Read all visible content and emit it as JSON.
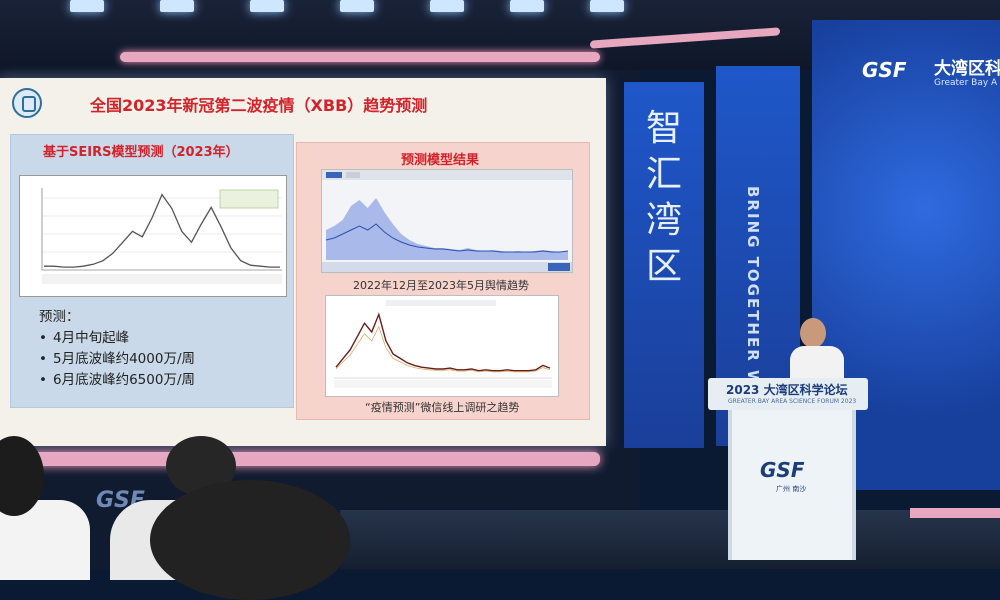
{
  "slide": {
    "title": "全国2023年新冠第二波疫情（XBB）趋势预测",
    "left_panel": {
      "title": "基于SEIRS模型预测（2023年）",
      "forecast_heading": "预测：",
      "forecast_points": [
        "4月中旬起峰",
        "5月底波峰约4000万/周",
        "6月底波峰约6500万/周"
      ]
    },
    "right_panel": {
      "title": "预测模型结果",
      "top_chart_caption": "2022年12月至2023年5月舆情趋势",
      "bottom_chart_caption": "“疫情预测”微信线上调研之趋势"
    }
  },
  "banners": {
    "left_vertical": "智汇湾区",
    "right_vertical": "BRING TOGETHER W"
  },
  "big_screen": {
    "logo": "GSF",
    "cn_title": "大湾区科",
    "en_title": "Greater Bay A"
  },
  "podium": {
    "cn_title": "2023 大湾区科学论坛",
    "en_title": "GREATER BAY AREA SCIENCE FORUM 2023",
    "logo": "GSF",
    "logo_sub": "广州 南沙"
  },
  "wall_logo": "GSF",
  "colors": {
    "slide_title": "#d3222a",
    "left_panel_bg": "#c9d9ea",
    "right_panel_bg": "#f6d3cc",
    "banner_blue": "#1f57c9",
    "pink_strip": "#e7a7bf"
  },
  "chart_data": {
    "type": "line",
    "left_seirs_curve": [
      2,
      2,
      1,
      1,
      2,
      4,
      8,
      16,
      28,
      40,
      34,
      55,
      80,
      65,
      40,
      28,
      48,
      66,
      45,
      22,
      8,
      3,
      2,
      1,
      1
    ],
    "right_top_series": {
      "area": [
        30,
        34,
        40,
        54,
        60,
        52,
        62,
        48,
        36,
        26,
        20,
        16,
        14,
        12,
        12,
        11,
        10,
        12,
        10,
        9,
        10,
        9,
        8,
        9,
        8,
        9,
        10,
        9,
        8,
        9
      ],
      "line": [
        20,
        22,
        26,
        30,
        34,
        30,
        36,
        28,
        22,
        18,
        15,
        13,
        12,
        11,
        11,
        10,
        9,
        10,
        9,
        9,
        9,
        8,
        8,
        8,
        8,
        8,
        9,
        8,
        8,
        9
      ]
    },
    "right_bottom_series": [
      10,
      20,
      30,
      45,
      60,
      50,
      70,
      40,
      25,
      20,
      15,
      12,
      10,
      9,
      8,
      8,
      9,
      7,
      7,
      8,
      6,
      7,
      6,
      6,
      7,
      6,
      6,
      6,
      7,
      12,
      9
    ]
  }
}
